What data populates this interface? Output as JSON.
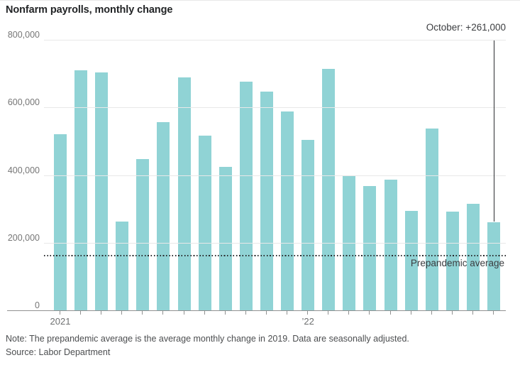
{
  "footer": {
    "note": "Note: The prepandemic average is the average monthly change in 2019. Data are seasonally adjusted.",
    "source": "Source: Labor Department"
  },
  "colors": {
    "bar_teal": "#90d3d5",
    "grid_gray": "#e8e8e8",
    "axis_gray": "#919191",
    "dark_text": "#26282b"
  },
  "chart_data": {
    "type": "bar",
    "title": "Nonfarm payrolls, monthly change",
    "x": [
      "2021-01",
      "2021-02",
      "2021-03",
      "2021-04",
      "2021-05",
      "2021-06",
      "2021-07",
      "2021-08",
      "2021-09",
      "2021-10",
      "2021-11",
      "2021-12",
      "2022-01",
      "2022-02",
      "2022-03",
      "2022-04",
      "2022-05",
      "2022-06",
      "2022-07",
      "2022-08",
      "2022-09",
      "2022-10"
    ],
    "values": [
      520000,
      710000,
      704000,
      263000,
      447000,
      557000,
      689000,
      517000,
      424000,
      677000,
      647000,
      588000,
      504000,
      714000,
      398000,
      368000,
      386000,
      293000,
      537000,
      292000,
      315000,
      261000
    ],
    "ylim": [
      0,
      800000
    ],
    "yticks": [
      {
        "value": 800000,
        "label": "800,000"
      },
      {
        "value": 600000,
        "label": "600,000"
      },
      {
        "value": 400000,
        "label": "400,000"
      },
      {
        "value": 200000,
        "label": "200,000"
      },
      {
        "value": 0,
        "label": "0"
      }
    ],
    "x_tick_labels": [
      {
        "index": 0,
        "label": "2021"
      },
      {
        "index": 12,
        "label": "’22"
      }
    ],
    "reference_line": {
      "value": 163000,
      "label": "Prepandemic average"
    },
    "annotation": {
      "bar_index": 21,
      "label": "October: +261,000"
    },
    "bar_color": "#90d3d5",
    "grid": true,
    "legend": false
  }
}
